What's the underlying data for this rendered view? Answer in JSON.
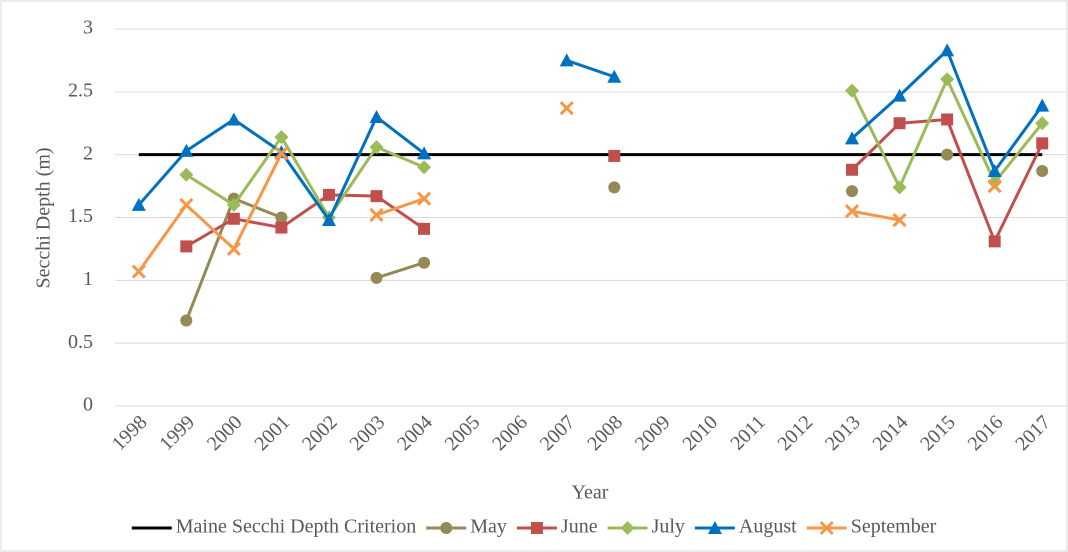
{
  "chart_data": {
    "type": "line",
    "x_label": "Year",
    "y_label": "Secchi Depth (m)",
    "categories": [
      "1998",
      "1999",
      "2000",
      "2001",
      "2002",
      "2003",
      "2004",
      "2005",
      "2006",
      "2007",
      "2008",
      "2009",
      "2010",
      "2011",
      "2012",
      "2013",
      "2014",
      "2015",
      "2016",
      "2017"
    ],
    "ylim": [
      0,
      3
    ],
    "yticks": [
      0,
      0.5,
      1,
      1.5,
      2,
      2.5,
      3
    ],
    "grid": true,
    "legend": "bottom",
    "series": [
      {
        "name": "Maine Secchi Depth Criterion",
        "color": "#000000",
        "marker": "none",
        "values": [
          2,
          2,
          2,
          2,
          2,
          2,
          2,
          2,
          2,
          2,
          2,
          2,
          2,
          2,
          2,
          2,
          2,
          2,
          2,
          2
        ]
      },
      {
        "name": "May",
        "color": "#948a54",
        "marker": "circle",
        "values": [
          null,
          0.68,
          1.65,
          1.5,
          null,
          1.02,
          1.14,
          null,
          null,
          null,
          1.74,
          null,
          null,
          null,
          null,
          1.71,
          null,
          2.0,
          null,
          1.87
        ]
      },
      {
        "name": "June",
        "color": "#c0504d",
        "marker": "square",
        "values": [
          null,
          1.27,
          1.49,
          1.42,
          1.68,
          1.67,
          1.41,
          null,
          null,
          null,
          1.99,
          null,
          null,
          null,
          null,
          1.88,
          2.25,
          2.28,
          1.31,
          2.09
        ]
      },
      {
        "name": "July",
        "color": "#9bbb59",
        "marker": "diamond",
        "values": [
          null,
          1.84,
          1.6,
          2.14,
          1.5,
          2.06,
          1.9,
          null,
          null,
          null,
          null,
          null,
          null,
          null,
          null,
          2.51,
          1.74,
          2.6,
          1.78,
          2.25
        ]
      },
      {
        "name": "August",
        "color": "#0070c0",
        "marker": "triangle",
        "values": [
          1.6,
          2.03,
          2.28,
          2.02,
          1.48,
          2.3,
          2.01,
          null,
          null,
          2.75,
          2.62,
          null,
          null,
          null,
          null,
          2.13,
          2.47,
          2.83,
          1.87,
          2.39
        ]
      },
      {
        "name": "September",
        "color": "#f79646",
        "marker": "x",
        "values": [
          1.07,
          1.6,
          1.25,
          2.01,
          null,
          1.52,
          1.65,
          null,
          null,
          2.37,
          null,
          null,
          null,
          null,
          null,
          1.55,
          1.48,
          null,
          1.75,
          null
        ]
      }
    ]
  }
}
